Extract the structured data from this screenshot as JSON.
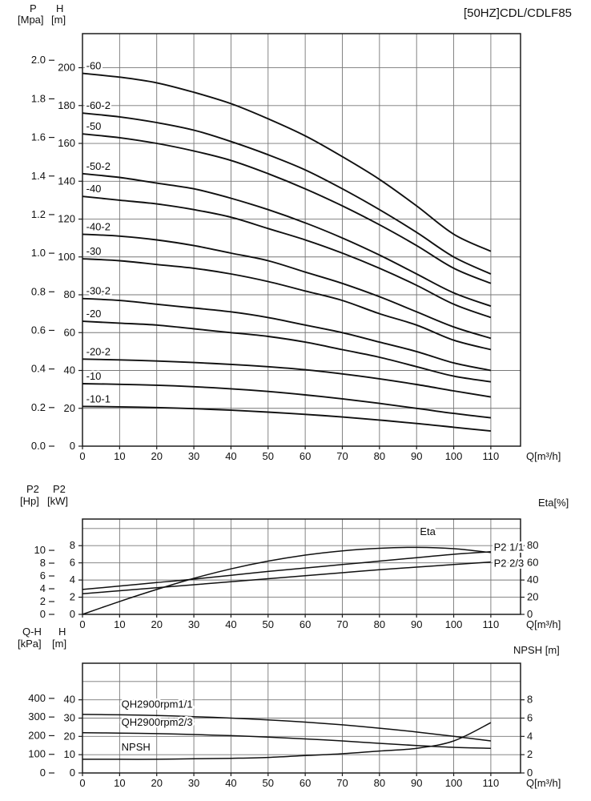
{
  "axes": {
    "main": {
      "p": "P",
      "p_unit": "[Mpa]",
      "h": "H",
      "h_unit": "[m]"
    },
    "power": {
      "hp": "P2",
      "hp_unit": "[Hp]",
      "kw": "P2",
      "kw_unit": "[kW]",
      "right": "Eta[%]"
    },
    "stage": {
      "kpa": "Q-H",
      "kpa_unit": "[kPa]",
      "m": "H",
      "m_unit": "[m]",
      "right": "NPSH [m]"
    }
  },
  "chart_data": [
    {
      "type": "line",
      "name": "main-qh-curves",
      "title": "[50HZ]CDL/CDLF85",
      "xlabel": "Q[m³/h]",
      "ylabel": "H[m]",
      "xlim": [
        0,
        118
      ],
      "ylim": [
        0,
        218
      ],
      "x_ticks": [
        0,
        10,
        20,
        30,
        40,
        50,
        60,
        70,
        80,
        90,
        100,
        110
      ],
      "y_ticks_m": [
        0,
        20,
        40,
        60,
        80,
        100,
        120,
        140,
        160,
        180,
        200
      ],
      "y_ticks_mpa": [
        "0.0",
        "0.2",
        "0.4",
        "0.6",
        "0.8",
        "1.0",
        "1.2",
        "1.4",
        "1.6",
        "1.8",
        "2.0"
      ],
      "mpa_to_m": 101.97,
      "x": [
        0,
        10,
        20,
        30,
        40,
        50,
        60,
        70,
        80,
        90,
        100,
        110
      ],
      "series": [
        {
          "name": "-60",
          "values": [
            197,
            195,
            192,
            187,
            181,
            173,
            164,
            153,
            141,
            127,
            112,
            103
          ]
        },
        {
          "name": "-60-2",
          "values": [
            176,
            174,
            171,
            167,
            161,
            154,
            146,
            136,
            125,
            113,
            100,
            91
          ]
        },
        {
          "name": "-50",
          "values": [
            165,
            163,
            160,
            156,
            151,
            144,
            136,
            127,
            117,
            106,
            94,
            86
          ]
        },
        {
          "name": "-50-2",
          "values": [
            144,
            142,
            139,
            136,
            131,
            125,
            118,
            110,
            101,
            91,
            81,
            74
          ]
        },
        {
          "name": "-40",
          "values": [
            132,
            130,
            128,
            125,
            121,
            115,
            109,
            102,
            94,
            85,
            75,
            68
          ]
        },
        {
          "name": "-40-2",
          "values": [
            112,
            111,
            109,
            106,
            102,
            98,
            92,
            86,
            79,
            71,
            63,
            57
          ]
        },
        {
          "name": "-30",
          "values": [
            99,
            98,
            96,
            94,
            91,
            87,
            82,
            77,
            70,
            64,
            56,
            51
          ]
        },
        {
          "name": "-30-2",
          "values": [
            78,
            77,
            75,
            73,
            71,
            68,
            64,
            60,
            55,
            50,
            44,
            40
          ]
        },
        {
          "name": "-20",
          "values": [
            66,
            65,
            64,
            62,
            60,
            58,
            55,
            51,
            47,
            42,
            37,
            34
          ]
        },
        {
          "name": "-20-2",
          "values": [
            46,
            45.6,
            45,
            44.2,
            43.2,
            42,
            40.4,
            38.2,
            35.6,
            32.6,
            29.2,
            26
          ]
        },
        {
          "name": "-10",
          "values": [
            33,
            32.7,
            32.2,
            31.4,
            30.3,
            28.9,
            27.1,
            25,
            22.6,
            20,
            17.3,
            15
          ]
        },
        {
          "name": "-10-1",
          "values": [
            21,
            20.8,
            20.4,
            19.8,
            19,
            18,
            16.8,
            15.4,
            13.8,
            12,
            10,
            8
          ]
        }
      ]
    },
    {
      "type": "line",
      "name": "power-and-efficiency",
      "xlabel": "Q[m³/h]",
      "xlim": [
        0,
        118
      ],
      "ylim_kw": [
        0,
        11.1
      ],
      "x_ticks": [
        0,
        10,
        20,
        30,
        40,
        50,
        60,
        70,
        80,
        90,
        100,
        110
      ],
      "kw_ticks": [
        0,
        2,
        4,
        6,
        8
      ],
      "hp_ticks": [
        0,
        2,
        4,
        6,
        8,
        10
      ],
      "hp_to_kw": 0.7457,
      "grid_kw": [
        2,
        4,
        6,
        8,
        10
      ],
      "eta_ticks": [
        0,
        20,
        40,
        60,
        80
      ],
      "eta_to_kw": 0.1,
      "x": [
        0,
        10,
        20,
        30,
        40,
        50,
        60,
        70,
        80,
        90,
        100,
        110
      ],
      "series": [
        {
          "name": "P2 1/1",
          "axis": "kw",
          "values": [
            2.9,
            3.3,
            3.7,
            4.1,
            4.55,
            5.0,
            5.4,
            5.8,
            6.2,
            6.6,
            7.0,
            7.3
          ],
          "label_at": [
            110.8,
            7.8
          ],
          "anchor": "start"
        },
        {
          "name": "P2 2/3",
          "axis": "kw",
          "values": [
            2.4,
            2.75,
            3.1,
            3.45,
            3.8,
            4.15,
            4.5,
            4.85,
            5.2,
            5.5,
            5.8,
            6.1
          ],
          "label_at": [
            110.8,
            5.9
          ],
          "anchor": "start"
        },
        {
          "name": "Eta",
          "axis": "eta",
          "values": [
            0,
            15,
            29,
            42,
            53,
            62,
            69,
            74,
            77,
            78,
            76.5,
            72
          ],
          "label_at": [
            93,
            9.6
          ],
          "anchor": "middle"
        }
      ]
    },
    {
      "type": "line",
      "name": "single-stage-head-and-npsh",
      "xlabel": "Q[m³/h]",
      "xlim": [
        0,
        118
      ],
      "ylim_m": [
        0,
        60
      ],
      "x_ticks": [
        0,
        10,
        20,
        30,
        40,
        50,
        60,
        70,
        80,
        90,
        100,
        110
      ],
      "m_ticks": [
        0,
        10,
        20,
        30,
        40
      ],
      "kpa_ticks": [
        0,
        100,
        200,
        300,
        400
      ],
      "kpa_to_m": 0.10197,
      "grid_m": [
        10,
        20,
        30,
        40,
        50
      ],
      "npsh_ticks": [
        0,
        2,
        4,
        6,
        8
      ],
      "npsh_to_m": 5,
      "x": [
        0,
        10,
        20,
        30,
        40,
        50,
        60,
        70,
        80,
        90,
        100,
        110
      ],
      "series": [
        {
          "name": "QH2900rpm1/1",
          "axis": "m",
          "values": [
            32,
            31.8,
            31.4,
            30.8,
            30,
            29,
            27.8,
            26.3,
            24.5,
            22.4,
            20,
            17.5
          ],
          "label_at": [
            10.5,
            37.5
          ],
          "anchor": "start"
        },
        {
          "name": "QH2900rpm2/3",
          "axis": "m",
          "values": [
            22,
            21.8,
            21.5,
            21,
            20.4,
            19.6,
            18.6,
            17.5,
            16.2,
            15,
            14,
            13.5
          ],
          "label_at": [
            10.5,
            27.5
          ],
          "anchor": "start"
        },
        {
          "name": "NPSH",
          "axis": "npsh",
          "values": [
            1.5,
            1.5,
            1.5,
            1.55,
            1.6,
            1.7,
            1.9,
            2.1,
            2.4,
            2.7,
            3.5,
            5.5
          ],
          "label_at": [
            10.5,
            14
          ],
          "anchor": "start"
        }
      ]
    }
  ]
}
